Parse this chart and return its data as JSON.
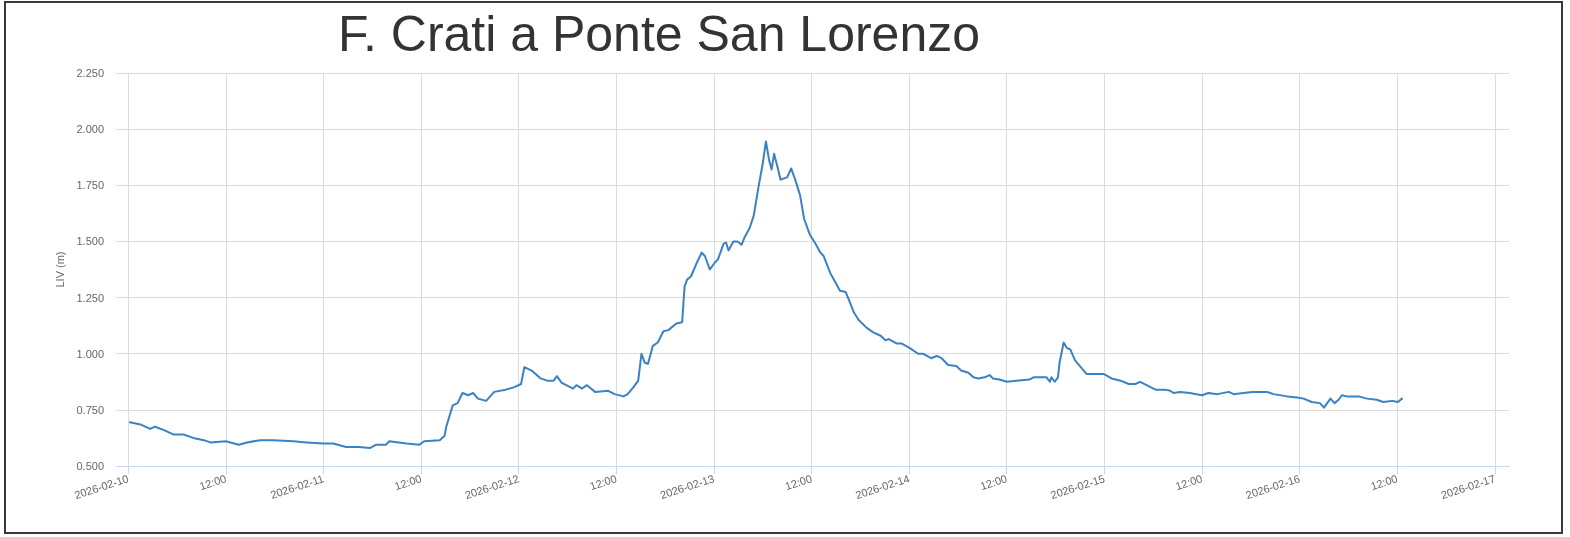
{
  "chart_data": {
    "type": "line",
    "title": "F. Crati a Ponte San Lorenzo",
    "ylabel": "LIV (m)",
    "x": [
      "2026-02-10T00:12",
      "2026-02-10T01:30",
      "2026-02-10T02:42",
      "2026-02-10T03:18",
      "2026-02-10T04:24",
      "2026-02-10T05:36",
      "2026-02-10T06:48",
      "2026-02-10T08:00",
      "2026-02-10T09:18",
      "2026-02-10T10:06",
      "2026-02-10T12:00",
      "2026-02-10T13:36",
      "2026-02-10T14:36",
      "2026-02-10T16:12",
      "2026-02-10T17:48",
      "2026-02-10T20:18",
      "2026-02-10T21:54",
      "2026-02-11T00:00",
      "2026-02-11T01:12",
      "2026-02-11T02:48",
      "2026-02-11T04:24",
      "2026-02-11T05:42",
      "2026-02-11T06:30",
      "2026-02-11T07:42",
      "2026-02-11T08:06",
      "2026-02-11T10:12",
      "2026-02-11T11:48",
      "2026-02-11T12:24",
      "2026-02-11T14:18",
      "2026-02-11T14:54",
      "2026-02-11T15:06",
      "2026-02-11T15:54",
      "2026-02-11T16:30",
      "2026-02-11T17:06",
      "2026-02-11T17:48",
      "2026-02-11T18:24",
      "2026-02-11T19:00",
      "2026-02-11T20:00",
      "2026-02-11T21:00",
      "2026-02-11T22:24",
      "2026-02-11T23:24",
      "2026-02-12T00:18",
      "2026-02-12T00:42",
      "2026-02-12T01:36",
      "2026-02-12T02:42",
      "2026-02-12T03:30",
      "2026-02-12T04:18",
      "2026-02-12T04:42",
      "2026-02-12T05:18",
      "2026-02-12T06:42",
      "2026-02-12T07:06",
      "2026-02-12T07:48",
      "2026-02-12T08:24",
      "2026-02-12T09:24",
      "2026-02-12T11:00",
      "2026-02-12T11:48",
      "2026-02-12T12:54",
      "2026-02-12T13:24",
      "2026-02-12T14:06",
      "2026-02-12T14:42",
      "2026-02-12T15:06",
      "2026-02-12T15:30",
      "2026-02-12T15:54",
      "2026-02-12T16:30",
      "2026-02-12T17:06",
      "2026-02-12T17:48",
      "2026-02-12T18:24",
      "2026-02-12T19:24",
      "2026-02-12T20:06",
      "2026-02-12T20:24",
      "2026-02-12T20:42",
      "2026-02-12T21:12",
      "2026-02-12T21:54",
      "2026-02-12T22:30",
      "2026-02-12T22:54",
      "2026-02-12T23:30",
      "2026-02-13T00:06",
      "2026-02-13T00:30",
      "2026-02-13T01:12",
      "2026-02-13T01:30",
      "2026-02-13T01:48",
      "2026-02-13T02:24",
      "2026-02-13T02:54",
      "2026-02-13T03:24",
      "2026-02-13T03:48",
      "2026-02-13T04:24",
      "2026-02-13T04:54",
      "2026-02-13T05:30",
      "2026-02-13T06:00",
      "2026-02-13T06:24",
      "2026-02-13T06:48",
      "2026-02-13T07:06",
      "2026-02-13T07:24",
      "2026-02-13T07:48",
      "2026-02-13T08:12",
      "2026-02-13T09:00",
      "2026-02-13T09:12",
      "2026-02-13T09:30",
      "2026-02-13T10:00",
      "2026-02-13T10:36",
      "2026-02-13T11:06",
      "2026-02-13T11:48",
      "2026-02-13T12:30",
      "2026-02-13T13:06",
      "2026-02-13T13:30",
      "2026-02-13T14:18",
      "2026-02-13T14:54",
      "2026-02-13T15:30",
      "2026-02-13T16:12",
      "2026-02-13T16:36",
      "2026-02-13T17:12",
      "2026-02-13T17:48",
      "2026-02-13T18:48",
      "2026-02-13T19:36",
      "2026-02-13T20:30",
      "2026-02-13T21:06",
      "2026-02-13T21:30",
      "2026-02-13T22:30",
      "2026-02-13T23:06",
      "2026-02-14T00:06",
      "2026-02-14T01:06",
      "2026-02-14T01:42",
      "2026-02-14T02:42",
      "2026-02-14T03:24",
      "2026-02-14T04:00",
      "2026-02-14T04:48",
      "2026-02-14T05:48",
      "2026-02-14T06:24",
      "2026-02-14T07:18",
      "2026-02-14T07:54",
      "2026-02-14T08:30",
      "2026-02-14T09:18",
      "2026-02-14T09:54",
      "2026-02-14T10:18",
      "2026-02-14T11:06",
      "2026-02-14T12:00",
      "2026-02-14T13:12",
      "2026-02-14T14:48",
      "2026-02-14T15:18",
      "2026-02-14T16:54",
      "2026-02-14T17:18",
      "2026-02-14T17:30",
      "2026-02-14T17:54",
      "2026-02-14T18:18",
      "2026-02-14T18:30",
      "2026-02-14T19:00",
      "2026-02-14T19:24",
      "2026-02-14T19:48",
      "2026-02-14T20:24",
      "2026-02-14T21:00",
      "2026-02-14T21:48",
      "2026-02-14T22:36",
      "2026-02-14T23:54",
      "2026-02-15T00:54",
      "2026-02-15T02:00",
      "2026-02-15T03:00",
      "2026-02-15T03:48",
      "2026-02-15T04:24",
      "2026-02-15T05:30",
      "2026-02-15T06:18",
      "2026-02-15T07:30",
      "2026-02-15T08:06",
      "2026-02-15T08:30",
      "2026-02-15T09:18",
      "2026-02-15T10:30",
      "2026-02-15T12:00",
      "2026-02-15T12:48",
      "2026-02-15T13:54",
      "2026-02-15T15:18",
      "2026-02-15T15:54",
      "2026-02-15T17:06",
      "2026-02-15T18:12",
      "2026-02-15T20:00",
      "2026-02-15T20:48",
      "2026-02-15T22:30",
      "2026-02-15T23:42",
      "2026-02-16T00:30",
      "2026-02-16T01:30",
      "2026-02-16T02:30",
      "2026-02-16T03:00",
      "2026-02-16T03:24",
      "2026-02-16T03:48",
      "2026-02-16T04:18",
      "2026-02-16T04:48",
      "2026-02-16T05:12",
      "2026-02-16T05:48",
      "2026-02-16T07:18",
      "2026-02-16T08:18",
      "2026-02-16T09:30",
      "2026-02-16T10:18",
      "2026-02-16T11:24",
      "2026-02-16T12:06",
      "2026-02-16T12:36"
    ],
    "series": [
      {
        "color": "#3b82c4",
        "values": [
          0.695,
          0.685,
          0.665,
          0.675,
          0.66,
          0.64,
          0.64,
          0.625,
          0.615,
          0.605,
          0.61,
          0.595,
          0.605,
          0.615,
          0.615,
          0.61,
          0.605,
          0.6,
          0.6,
          0.585,
          0.585,
          0.58,
          0.595,
          0.595,
          0.61,
          0.6,
          0.595,
          0.61,
          0.615,
          0.635,
          0.675,
          0.77,
          0.78,
          0.825,
          0.815,
          0.825,
          0.8,
          0.79,
          0.83,
          0.84,
          0.85,
          0.865,
          0.94,
          0.925,
          0.89,
          0.88,
          0.88,
          0.9,
          0.87,
          0.845,
          0.86,
          0.845,
          0.86,
          0.83,
          0.835,
          0.82,
          0.81,
          0.82,
          0.85,
          0.88,
          1.0,
          0.96,
          0.955,
          1.035,
          1.05,
          1.1,
          1.105,
          1.135,
          1.14,
          1.3,
          1.33,
          1.345,
          1.405,
          1.45,
          1.435,
          1.375,
          1.405,
          1.42,
          1.49,
          1.495,
          1.46,
          1.5,
          1.5,
          1.485,
          1.52,
          1.56,
          1.615,
          1.745,
          1.845,
          1.945,
          1.86,
          1.82,
          1.89,
          1.835,
          1.775,
          1.785,
          1.8,
          1.825,
          1.775,
          1.705,
          1.6,
          1.53,
          1.49,
          1.45,
          1.435,
          1.36,
          1.32,
          1.28,
          1.275,
          1.24,
          1.185,
          1.15,
          1.115,
          1.095,
          1.08,
          1.06,
          1.065,
          1.045,
          1.045,
          1.025,
          1.0,
          1.0,
          0.98,
          0.99,
          0.98,
          0.95,
          0.945,
          0.925,
          0.915,
          0.895,
          0.89,
          0.895,
          0.905,
          0.89,
          0.885,
          0.875,
          0.88,
          0.885,
          0.895,
          0.895,
          0.875,
          0.895,
          0.875,
          0.895,
          0.96,
          1.05,
          1.025,
          1.02,
          0.97,
          0.945,
          0.91,
          0.91,
          0.91,
          0.89,
          0.88,
          0.865,
          0.865,
          0.875,
          0.855,
          0.84,
          0.84,
          0.835,
          0.825,
          0.83,
          0.825,
          0.815,
          0.825,
          0.82,
          0.83,
          0.82,
          0.825,
          0.83,
          0.83,
          0.82,
          0.81,
          0.805,
          0.8,
          0.785,
          0.78,
          0.76,
          0.78,
          0.8,
          0.78,
          0.795,
          0.815,
          0.81,
          0.81,
          0.8,
          0.795,
          0.785,
          0.79,
          0.785,
          0.8
        ]
      }
    ],
    "xlim": [
      "2026-02-09T22:30",
      "2026-02-17T01:45"
    ],
    "ylim": [
      0.5,
      2.25
    ],
    "xticks": [
      "2026-02-10",
      {
        "value": "2026-02-10T12:00",
        "label": "12:00"
      },
      "2026-02-11",
      {
        "value": "2026-02-11T12:00",
        "label": "12:00"
      },
      "2026-02-12",
      {
        "value": "2026-02-12T12:00",
        "label": "12:00"
      },
      "2026-02-13",
      {
        "value": "2026-02-13T12:00",
        "label": "12:00"
      },
      "2026-02-14",
      {
        "value": "2026-02-14T12:00",
        "label": "12:00"
      },
      "2026-02-15",
      {
        "value": "2026-02-15T12:00",
        "label": "12:00"
      },
      "2026-02-16",
      {
        "value": "2026-02-16T12:00",
        "label": "12:00"
      },
      "2026-02-17"
    ],
    "yticks": [
      {
        "value": 0.5,
        "label": "0.500"
      },
      {
        "value": 0.75,
        "label": "0.750"
      },
      {
        "value": 1.0,
        "label": "1.000"
      },
      {
        "value": 1.25,
        "label": "1.250"
      },
      {
        "value": 1.5,
        "label": "1.500"
      },
      {
        "value": 1.75,
        "label": "1.750"
      },
      {
        "value": 2.0,
        "label": "2.000"
      },
      {
        "value": 2.25,
        "label": "2.250"
      }
    ],
    "grid": true,
    "marker": "none",
    "line_style": "solid"
  }
}
